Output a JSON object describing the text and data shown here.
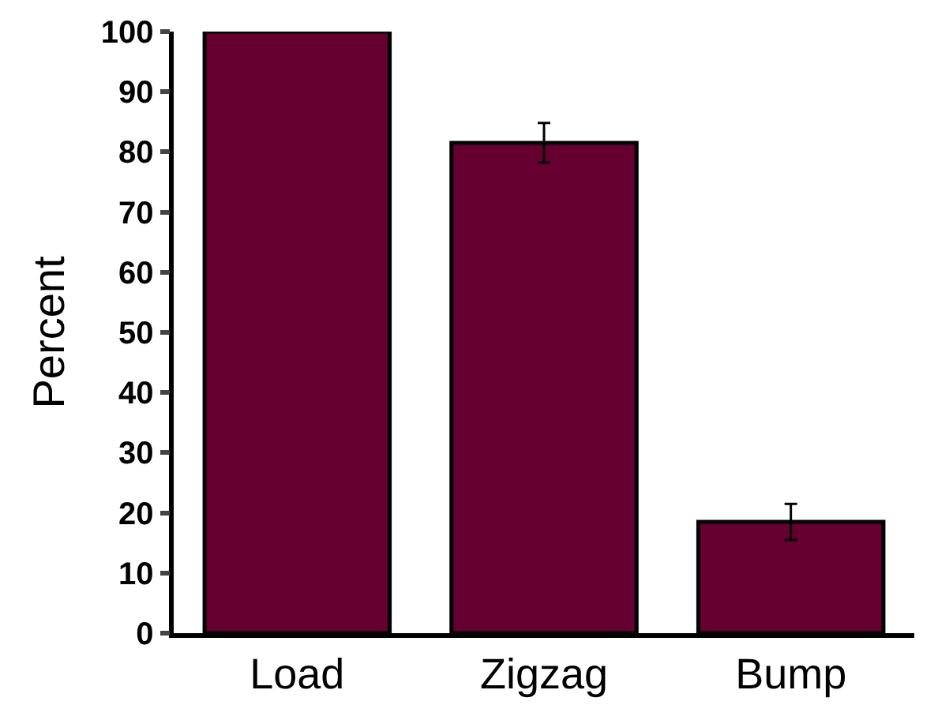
{
  "chart_data": {
    "type": "bar",
    "ylabel": "Percent",
    "categories": [
      "Load",
      "Zigzag",
      "Bump"
    ],
    "values": [
      100,
      81.5,
      18.5
    ],
    "errors": [
      null,
      3.3,
      3
    ],
    "color": "#650030",
    "ylim": [
      0,
      100
    ],
    "yticks": [
      0,
      10,
      20,
      30,
      40,
      50,
      60,
      70,
      80,
      90,
      100
    ],
    "grid": false
  }
}
